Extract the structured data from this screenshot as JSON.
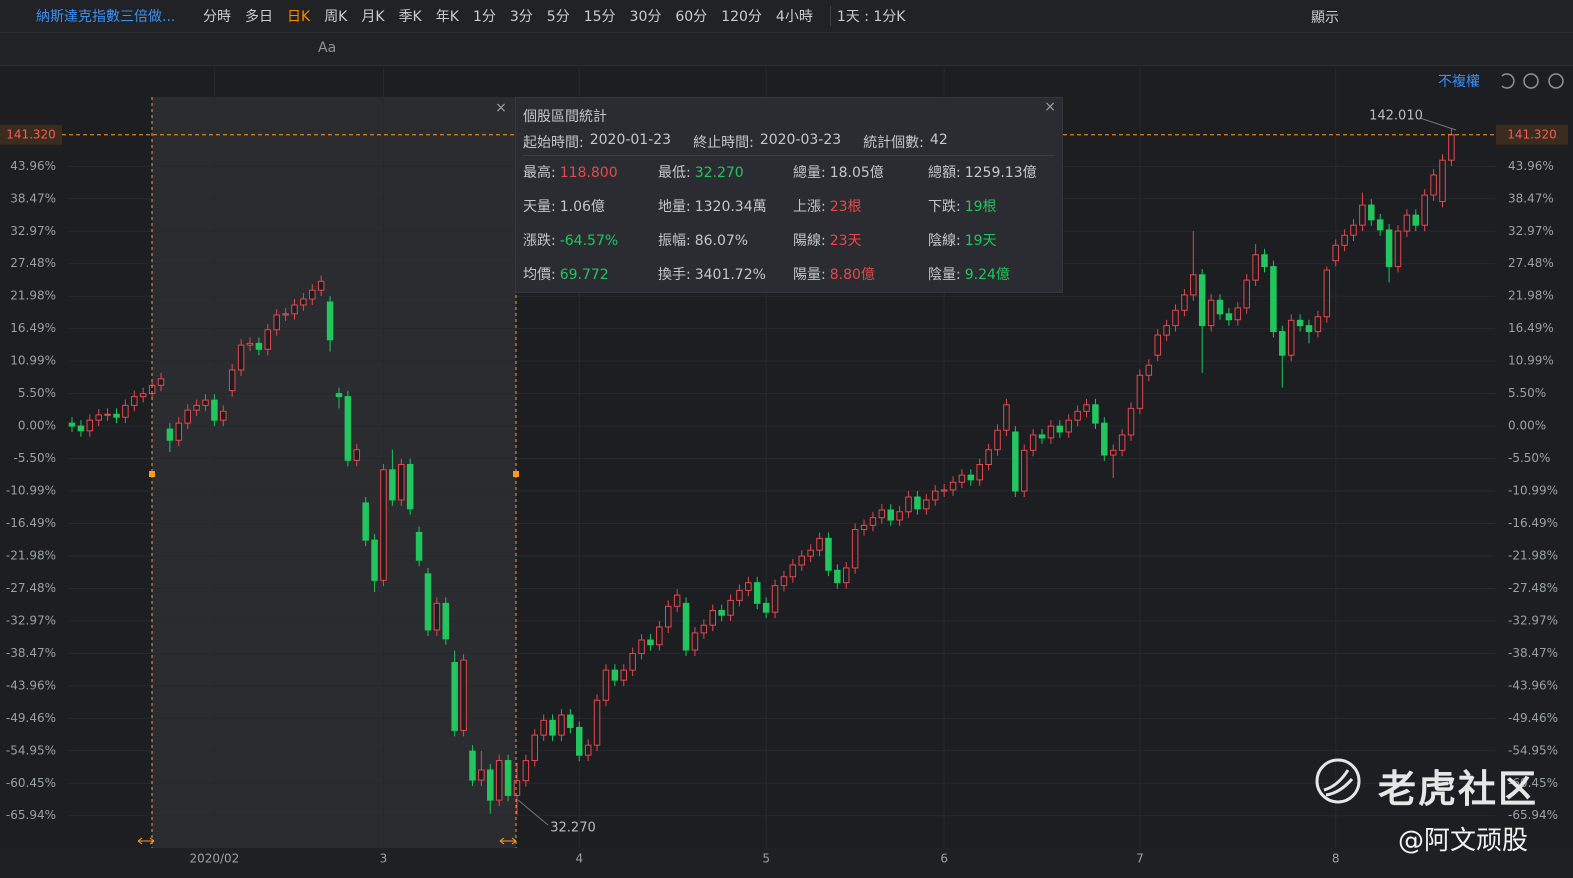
{
  "toolbar": {
    "title": "納斯達克指數三倍做...",
    "periods": [
      "分時",
      "多日",
      "日K",
      "周K",
      "月K",
      "季K",
      "年K",
      "1分",
      "3分",
      "5分",
      "15分",
      "30分",
      "60分",
      "120分",
      "4小時"
    ],
    "active": 2,
    "selector": "1天 : 1分K",
    "display": "顯示",
    "tool_text": "Aa"
  },
  "adjust": "不複權",
  "stats": {
    "title": "個股區間統計",
    "start_label": "起始時間:",
    "start": "2020-01-23",
    "end_label": "終止時間:",
    "end": "2020-03-23",
    "count_label": "統計個數:",
    "count": 42,
    "rows": [
      [
        {
          "label": "最高:",
          "value": "118.800",
          "color": "#e5484d"
        },
        {
          "label": "最低:",
          "value": "32.270",
          "color": "#22c55e"
        },
        {
          "label": "總量:",
          "value": "18.05億"
        },
        {
          "label": "總額:",
          "value": "1259.13億"
        }
      ],
      [
        {
          "label": "天量:",
          "value": "1.06億"
        },
        {
          "label": "地量:",
          "value": "1320.34萬"
        },
        {
          "label": "上漲:",
          "value": "23根",
          "color": "#e5484d"
        },
        {
          "label": "下跌:",
          "value": "19根",
          "color": "#22c55e"
        }
      ],
      [
        {
          "label": "漲跌:",
          "value": "-64.57%",
          "color": "#22c55e"
        },
        {
          "label": "振幅:",
          "value": "86.07%"
        },
        {
          "label": "陽線:",
          "value": "23天",
          "color": "#e5484d"
        },
        {
          "label": "陰線:",
          "value": "19天",
          "color": "#22c55e"
        }
      ],
      [
        {
          "label": "均價:",
          "value": "69.772",
          "color": "#22c55e"
        },
        {
          "label": "換手:",
          "value": "3401.72%"
        },
        {
          "label": "陽量:",
          "value": "8.80億",
          "color": "#e5484d"
        },
        {
          "label": "陰量:",
          "value": "9.24億",
          "color": "#22c55e"
        }
      ]
    ]
  },
  "chart_data": {
    "type": "candlestick",
    "up_color": "#e5484d",
    "down_color": "#22c55e",
    "price_label": "141.320",
    "high_label": "142.010",
    "low_label": "32.270",
    "grid": true,
    "xlim": [
      -0.45,
      159.9
    ],
    "ylim": [
      -71.4,
      60.6
    ],
    "xticks": [
      {
        "value": 16,
        "label": "2020/02"
      },
      {
        "value": 35,
        "label": "3"
      },
      {
        "value": 57,
        "label": "4"
      },
      {
        "value": 78,
        "label": "5"
      },
      {
        "value": 98,
        "label": "6"
      },
      {
        "value": 120,
        "label": "7"
      },
      {
        "value": 142,
        "label": "8"
      }
    ],
    "yticks": [
      {
        "value": 43.96,
        "label": "43.96%"
      },
      {
        "value": 38.47,
        "label": "38.47%"
      },
      {
        "value": 32.97,
        "label": "32.97%"
      },
      {
        "value": 27.48,
        "label": "27.48%"
      },
      {
        "value": 21.98,
        "label": "21.98%"
      },
      {
        "value": 16.49,
        "label": "16.49%"
      },
      {
        "value": 10.99,
        "label": "10.99%"
      },
      {
        "value": 5.5,
        "label": "5.50%"
      },
      {
        "value": 0,
        "label": "0.00%"
      },
      {
        "value": -5.5,
        "label": "-5.50%"
      },
      {
        "value": -10.99,
        "label": "-10.99%"
      },
      {
        "value": -16.49,
        "label": "-16.49%"
      },
      {
        "value": -21.98,
        "label": "-21.98%"
      },
      {
        "value": -27.48,
        "label": "-27.48%"
      },
      {
        "value": -32.97,
        "label": "-32.97%"
      },
      {
        "value": -38.47,
        "label": "-38.47%"
      },
      {
        "value": -43.96,
        "label": "-43.96%"
      },
      {
        "value": -49.46,
        "label": "-49.46%"
      },
      {
        "value": -54.95,
        "label": "-54.95%"
      },
      {
        "value": -60.45,
        "label": "-60.45%"
      },
      {
        "value": -65.94,
        "label": "-65.94%"
      }
    ],
    "candles": [
      [
        0.5,
        1.5,
        -1,
        0
      ],
      [
        0,
        1,
        -1.8,
        -0.8
      ],
      [
        -0.8,
        2,
        -1.8,
        1
      ],
      [
        1,
        2.9,
        0,
        1.9
      ],
      [
        1.9,
        3,
        0.9,
        2
      ],
      [
        2,
        3,
        0.5,
        1.5
      ],
      [
        1.5,
        4.5,
        0.5,
        3.5
      ],
      [
        3.5,
        6,
        2.5,
        5
      ],
      [
        5,
        6.5,
        4,
        5.5
      ],
      [
        5.5,
        7.9,
        4.5,
        6.9
      ],
      [
        6.9,
        9,
        5.9,
        8
      ],
      [
        -0.5,
        0.5,
        -4.4,
        -2.4
      ],
      [
        -2.4,
        1.5,
        -3.4,
        0.5
      ],
      [
        0.5,
        3.7,
        -0.5,
        2.7
      ],
      [
        2.7,
        4.5,
        1.7,
        3.5
      ],
      [
        3.5,
        5.4,
        2.5,
        4.4
      ],
      [
        4.4,
        5.4,
        0,
        1
      ],
      [
        1,
        3.5,
        0,
        2.5
      ],
      [
        6,
        10.5,
        5,
        9.5
      ],
      [
        9.5,
        14.7,
        8.5,
        13.7
      ],
      [
        13.7,
        15,
        12.7,
        14
      ],
      [
        14,
        15,
        12,
        13
      ],
      [
        13,
        17.3,
        12,
        16.3
      ],
      [
        16.3,
        19.8,
        15.3,
        18.8
      ],
      [
        18.8,
        20,
        17.8,
        19
      ],
      [
        19,
        21.5,
        18,
        20.5
      ],
      [
        20.5,
        22.5,
        19.5,
        21.5
      ],
      [
        21.5,
        24,
        20.5,
        23
      ],
      [
        23,
        25.5,
        22,
        24.5
      ],
      [
        21,
        22,
        12.6,
        14.6
      ],
      [
        5.5,
        6.5,
        3,
        5
      ],
      [
        5,
        6,
        -6.8,
        -5.8
      ],
      [
        -5.8,
        -3,
        -6.8,
        -4
      ],
      [
        -13,
        -12,
        -20.3,
        -19.3
      ],
      [
        -19.3,
        -18.3,
        -28.1,
        -26.1
      ],
      [
        -26.1,
        -6.4,
        -27.1,
        -7.4
      ],
      [
        -7.4,
        -4,
        -13.5,
        -12.5
      ],
      [
        -12.5,
        -5.5,
        -13.5,
        -6.5
      ],
      [
        -6.5,
        -5.5,
        -15,
        -14
      ],
      [
        -18,
        -17,
        -23.7,
        -22.7
      ],
      [
        -25,
        -24,
        -35.5,
        -34.5
      ],
      [
        -34.5,
        -29,
        -35.5,
        -30
      ],
      [
        -30,
        -29,
        -37,
        -36
      ],
      [
        -40,
        -38,
        -52.5,
        -51.5
      ],
      [
        -51.5,
        -38.6,
        -52.5,
        -39.6
      ],
      [
        -55,
        -54,
        -60.9,
        -59.9
      ],
      [
        -59.9,
        -55,
        -60.9,
        -58.2
      ],
      [
        -58.2,
        -57.2,
        -65.6,
        -63.3
      ],
      [
        -63.3,
        -55.6,
        -64.3,
        -56.6
      ],
      [
        -56.6,
        -55.6,
        -63.5,
        -62.5
      ],
      [
        -62.5,
        -57,
        -65.8,
        -60
      ],
      [
        -60,
        -55.6,
        -61,
        -56.6
      ],
      [
        -56.6,
        -51.3,
        -57.6,
        -52.3
      ],
      [
        -52.3,
        -48.8,
        -53.3,
        -49.8
      ],
      [
        -49.8,
        -48.8,
        -53.3,
        -52.3
      ],
      [
        -52.3,
        -47.9,
        -53.3,
        -48.9
      ],
      [
        -48.9,
        -47.9,
        -52,
        -51
      ],
      [
        -51,
        -50,
        -56.7,
        -55.7
      ],
      [
        -55.7,
        -53,
        -56.7,
        -54
      ],
      [
        -54,
        -45.4,
        -55,
        -46.4
      ],
      [
        -46.4,
        -40.3,
        -47.4,
        -41.3
      ],
      [
        -41.3,
        -40.3,
        -44,
        -43
      ],
      [
        -43,
        -40.3,
        -44,
        -41.3
      ],
      [
        -41.3,
        -37.5,
        -42.3,
        -38.5
      ],
      [
        -38.5,
        -35.2,
        -39.5,
        -36.2
      ],
      [
        -36.2,
        -35.2,
        -38,
        -37
      ],
      [
        -37,
        -33,
        -38,
        -34
      ],
      [
        -34,
        -29.5,
        -35,
        -30.5
      ],
      [
        -30.5,
        -27.6,
        -31.5,
        -28.6
      ],
      [
        -30,
        -29,
        -38.9,
        -37.9
      ],
      [
        -37.9,
        -34,
        -38.9,
        -35
      ],
      [
        -35,
        -32.7,
        -36,
        -33.7
      ],
      [
        -33.7,
        -30.2,
        -34.7,
        -31.2
      ],
      [
        -31.2,
        -30.2,
        -33,
        -32
      ],
      [
        -32,
        -28.5,
        -33,
        -29.5
      ],
      [
        -29.5,
        -26.8,
        -30.5,
        -27.8
      ],
      [
        -27.8,
        -25.5,
        -28.8,
        -26.5
      ],
      [
        -26.5,
        -25.5,
        -31,
        -30
      ],
      [
        -30,
        -29,
        -32.5,
        -31.5
      ],
      [
        -31.5,
        -26,
        -32.5,
        -27
      ],
      [
        -27,
        -24.5,
        -28,
        -25.5
      ],
      [
        -25.5,
        -22.5,
        -26.5,
        -23.5
      ],
      [
        -23.5,
        -21,
        -24.5,
        -22
      ],
      [
        -22,
        -20,
        -23,
        -21
      ],
      [
        -21,
        -18,
        -22,
        -19
      ],
      [
        -19,
        -18,
        -25.4,
        -24.4
      ],
      [
        -24.4,
        -23.4,
        -27.5,
        -26.5
      ],
      [
        -26.5,
        -23,
        -27.5,
        -24
      ],
      [
        -24,
        -16.5,
        -25,
        -17.5
      ],
      [
        -17.5,
        -15.8,
        -18.5,
        -16.8
      ],
      [
        -16.8,
        -14.5,
        -17.8,
        -15.5
      ],
      [
        -15.5,
        -13.2,
        -16.5,
        -14.2
      ],
      [
        -14.2,
        -13.2,
        -16.9,
        -15.9
      ],
      [
        -15.9,
        -13.5,
        -16.9,
        -14.5
      ],
      [
        -14.5,
        -11,
        -15.5,
        -12
      ],
      [
        -12,
        -11,
        -15,
        -14
      ],
      [
        -14,
        -11.5,
        -15,
        -12.5
      ],
      [
        -12.5,
        -10,
        -13.5,
        -11
      ],
      [
        -11,
        -9.8,
        -12,
        -10.8
      ],
      [
        -10.8,
        -8.5,
        -11.8,
        -9.5
      ],
      [
        -9.5,
        -7.3,
        -10.5,
        -8.3
      ],
      [
        -8.3,
        -7.3,
        -10.1,
        -9.1
      ],
      [
        -9.1,
        -5.5,
        -10.1,
        -6.5
      ],
      [
        -6.5,
        -3,
        -7.5,
        -4
      ],
      [
        -4,
        0.3,
        -5,
        -0.7
      ],
      [
        -0.7,
        4.6,
        -1.7,
        3.6
      ],
      [
        -1,
        0,
        -12,
        -11
      ],
      [
        -11,
        -3.1,
        -12,
        -4.1
      ],
      [
        -4.1,
        -0.5,
        -5.1,
        -1.5
      ],
      [
        -1.5,
        -0.5,
        -3,
        -2
      ],
      [
        -2,
        1,
        -3,
        0
      ],
      [
        0,
        1,
        -2,
        -1
      ],
      [
        -1,
        2,
        -2,
        1
      ],
      [
        1,
        3.5,
        0,
        2.5
      ],
      [
        2.5,
        4.6,
        1.5,
        3.6
      ],
      [
        3.6,
        4.6,
        -0.5,
        0.5
      ],
      [
        0.5,
        1.5,
        -5.9,
        -4.9
      ],
      [
        -4.9,
        -3.1,
        -8.8,
        -4.1
      ],
      [
        -4.1,
        -0.5,
        -5.1,
        -1.5
      ],
      [
        -1.5,
        4,
        -2.5,
        3
      ],
      [
        3,
        9.6,
        2,
        8.6
      ],
      [
        8.6,
        11.3,
        7.6,
        10.3
      ],
      [
        12,
        16.4,
        11,
        15.4
      ],
      [
        15.4,
        18,
        14.4,
        17
      ],
      [
        17,
        20.6,
        16,
        19.6
      ],
      [
        19.6,
        23.2,
        18.6,
        22.2
      ],
      [
        22.2,
        33,
        21.2,
        25.6
      ],
      [
        25.6,
        26.6,
        9,
        17
      ],
      [
        17,
        22.3,
        16,
        21.3
      ],
      [
        21.3,
        22.3,
        18,
        19
      ],
      [
        19,
        20,
        17,
        18
      ],
      [
        18,
        21,
        17,
        20
      ],
      [
        20,
        25.7,
        19,
        24.7
      ],
      [
        24.7,
        30.8,
        23.7,
        29
      ],
      [
        29,
        30,
        26,
        27
      ],
      [
        27,
        28,
        15,
        16
      ],
      [
        16,
        17,
        6.5,
        12
      ],
      [
        12,
        18.9,
        11,
        17.9
      ],
      [
        17.9,
        18.9,
        16,
        17
      ],
      [
        17,
        18,
        14,
        16
      ],
      [
        16,
        19.5,
        15,
        18.5
      ],
      [
        18.5,
        27,
        17.5,
        26.4
      ],
      [
        28,
        31.6,
        27,
        30.6
      ],
      [
        30.6,
        33.3,
        29.6,
        32.3
      ],
      [
        32.3,
        35,
        31.3,
        34
      ],
      [
        34,
        39.5,
        33,
        37.4
      ],
      [
        37.4,
        38.4,
        33.9,
        34.9
      ],
      [
        34.9,
        35.9,
        32.2,
        33.2
      ],
      [
        33.2,
        34.2,
        24.3,
        27
      ],
      [
        27,
        34,
        26,
        33
      ],
      [
        33,
        36.7,
        32,
        35.7
      ],
      [
        35.7,
        36.7,
        33,
        34
      ],
      [
        34,
        40.1,
        33,
        39.1
      ],
      [
        39.1,
        43.5,
        38.1,
        42.5
      ],
      [
        38,
        46,
        37,
        45
      ],
      [
        45,
        50.4,
        44,
        49.3
      ]
    ]
  },
  "watermark": "老虎社区",
  "credit": "@阿文顽股"
}
